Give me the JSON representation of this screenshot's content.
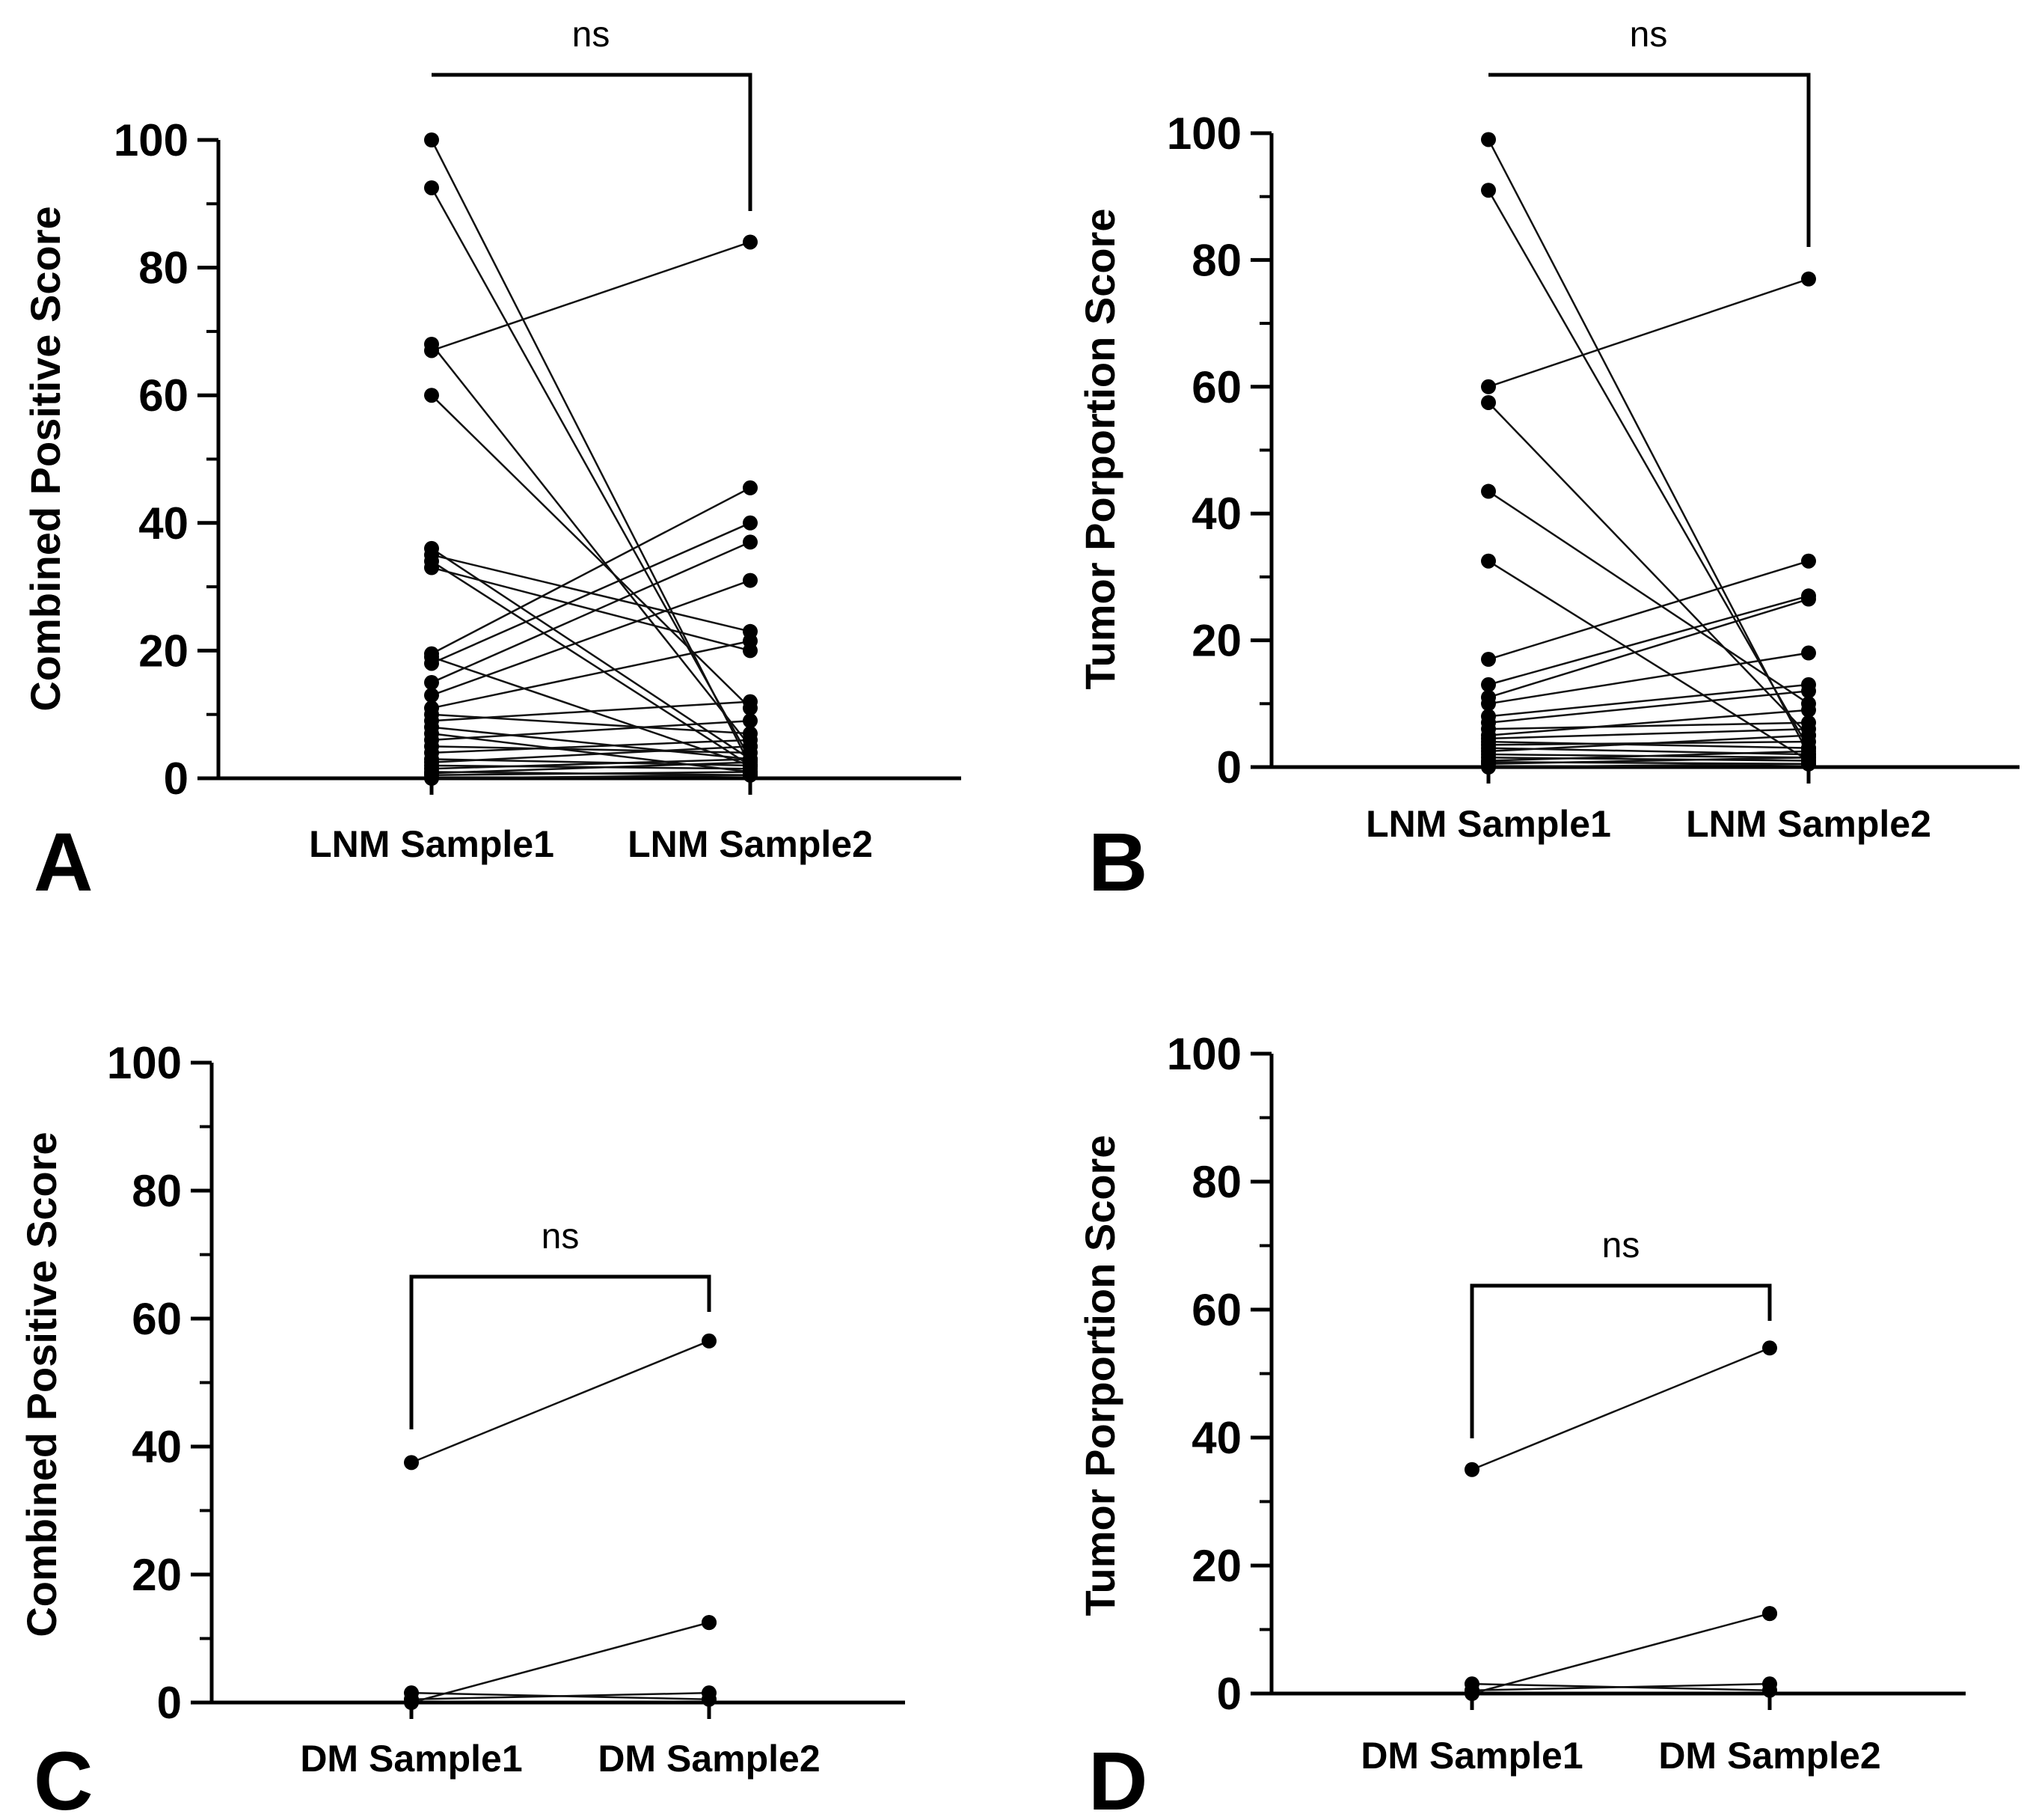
{
  "chart_data": [
    {
      "panel": "A",
      "type": "scatter",
      "ylabel": "Combined Positive Score",
      "categories": [
        "LNM Sample1",
        "LNM Sample2"
      ],
      "ylim": [
        0,
        100
      ],
      "yticks": [
        "0",
        "20",
        "40",
        "60",
        "80",
        "100"
      ],
      "significance": "ns",
      "pairs": [
        [
          100,
          2
        ],
        [
          92.5,
          3
        ],
        [
          67,
          84
        ],
        [
          68,
          5
        ],
        [
          60,
          11
        ],
        [
          36,
          3
        ],
        [
          35,
          23
        ],
        [
          34,
          2
        ],
        [
          33,
          20
        ],
        [
          19.5,
          45.5
        ],
        [
          19,
          2
        ],
        [
          18,
          40
        ],
        [
          15,
          37
        ],
        [
          13,
          31
        ],
        [
          11,
          21.5
        ],
        [
          10,
          7
        ],
        [
          9,
          12
        ],
        [
          8,
          3
        ],
        [
          7,
          1
        ],
        [
          6,
          9
        ],
        [
          5,
          4
        ],
        [
          4,
          6
        ],
        [
          3,
          2
        ],
        [
          2.5,
          5
        ],
        [
          2,
          1.5
        ],
        [
          1.5,
          3
        ],
        [
          1,
          0.5
        ],
        [
          0.8,
          2.5
        ],
        [
          0.5,
          1
        ],
        [
          0,
          0.5
        ]
      ]
    },
    {
      "panel": "B",
      "type": "scatter",
      "ylabel": "Tumor Porportion Score",
      "categories": [
        "LNM Sample1",
        "LNM Sample2"
      ],
      "ylim": [
        0,
        100
      ],
      "yticks": [
        "0",
        "20",
        "40",
        "60",
        "80",
        "100"
      ],
      "significance": "ns",
      "pairs": [
        [
          99,
          2
        ],
        [
          91,
          3
        ],
        [
          60,
          77
        ],
        [
          57.5,
          5
        ],
        [
          43.5,
          10
        ],
        [
          32.5,
          1
        ],
        [
          17,
          32.5
        ],
        [
          13,
          27
        ],
        [
          11,
          26.5
        ],
        [
          10,
          18
        ],
        [
          8,
          13
        ],
        [
          7,
          12
        ],
        [
          6,
          7
        ],
        [
          5,
          9
        ],
        [
          4.5,
          6
        ],
        [
          4,
          3
        ],
        [
          3.5,
          4
        ],
        [
          3,
          2
        ],
        [
          2.5,
          5
        ],
        [
          2,
          1.5
        ],
        [
          1.5,
          1
        ],
        [
          1,
          2.5
        ],
        [
          0.8,
          0.5
        ],
        [
          0.5,
          1.5
        ],
        [
          0,
          0.5
        ]
      ]
    },
    {
      "panel": "C",
      "type": "scatter",
      "ylabel": "Combined Positive Score",
      "categories": [
        "DM Sample1",
        "DM Sample2"
      ],
      "ylim": [
        0,
        100
      ],
      "yticks": [
        "0",
        "20",
        "40",
        "60",
        "80",
        "100"
      ],
      "significance": "ns",
      "pairs": [
        [
          37.5,
          56.5
        ],
        [
          1.5,
          0.5
        ],
        [
          0.5,
          1.5
        ],
        [
          0,
          12.5
        ]
      ],
      "unpaired_points": [
        [
          1,
          12.5
        ]
      ]
    },
    {
      "panel": "D",
      "type": "scatter",
      "ylabel": "Tumor Porportion Score",
      "categories": [
        "DM Sample1",
        "DM Sample2"
      ],
      "ylim": [
        0,
        100
      ],
      "yticks": [
        "0",
        "20",
        "40",
        "60",
        "80",
        "100"
      ],
      "significance": "ns",
      "pairs": [
        [
          35,
          54
        ],
        [
          1.5,
          0.5
        ],
        [
          0.5,
          1.5
        ],
        [
          0,
          12.5
        ]
      ],
      "unpaired_points": [
        [
          1,
          12.5
        ]
      ]
    }
  ]
}
